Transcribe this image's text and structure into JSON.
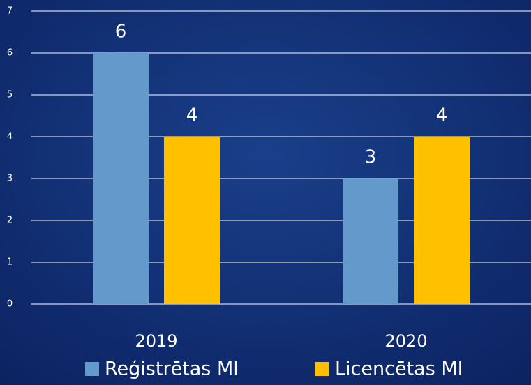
{
  "chart_data": {
    "type": "bar",
    "categories": [
      "2019",
      "2020"
    ],
    "series": [
      {
        "name": "Reģistrētas MI",
        "color": "#6499cb",
        "values": [
          6,
          3
        ]
      },
      {
        "name": "Licencētas MI",
        "color": "#ffc000",
        "values": [
          4,
          4
        ]
      }
    ],
    "ylim": [
      0,
      7
    ],
    "yticks": [
      0,
      1,
      2,
      3,
      4,
      5,
      6,
      7
    ],
    "grid": true,
    "legend": "bottom"
  }
}
